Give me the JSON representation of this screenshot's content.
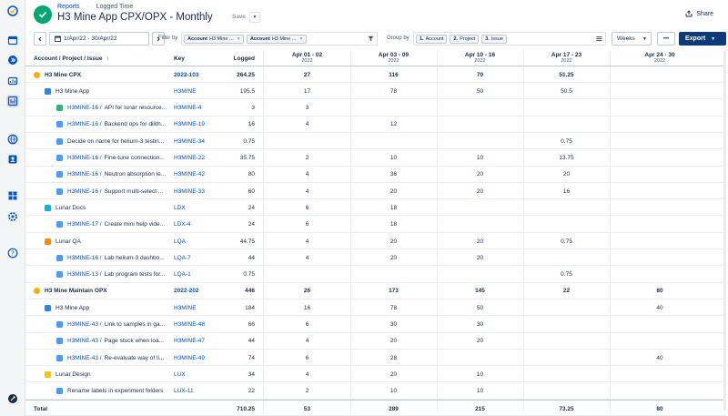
{
  "header": {
    "breadcrumb": [
      "Reports",
      "Logged Time"
    ],
    "breadcrumb_sep": "·",
    "title": "H3 Mine App CPX/OPX - Monthly",
    "save_label": "Save",
    "share_label": "Share"
  },
  "toolbar": {
    "date_range": "1/Apr/22 - 30/Apr/22",
    "filter_label": "Filter by",
    "filters": [
      {
        "bold": "Account",
        "text": "H3 Mine ..."
      },
      {
        "bold": "Account",
        "text": "H3 Mine ..."
      }
    ],
    "group_label": "Group by",
    "groups": [
      {
        "bold": "1.",
        "text": "Account"
      },
      {
        "bold": "2.",
        "text": "Project"
      },
      {
        "bold": "3.",
        "text": "Issue"
      }
    ],
    "period": "Weeks",
    "more": "•••",
    "export_label": "Export"
  },
  "table": {
    "headers": {
      "name": "Account / Project / Issue",
      "sort": "↑",
      "key": "Key",
      "logged": "Logged",
      "periods": [
        {
          "range": "Apr 01 - 02",
          "year": "2022"
        },
        {
          "range": "Apr 03 - 09",
          "year": "2022"
        },
        {
          "range": "Apr 10 - 16",
          "year": "2022"
        },
        {
          "range": "Apr 17 - 23",
          "year": "2022"
        },
        {
          "range": "Apr 24 - 30",
          "year": "2022"
        }
      ]
    },
    "rows": [
      {
        "level": 0,
        "type": "account",
        "prefix": "",
        "name": "H3 Mine CPX",
        "key": "2022-103",
        "logged": "264.25",
        "v": [
          "27",
          "116",
          "70",
          "51.25",
          ""
        ]
      },
      {
        "level": 1,
        "type": "project",
        "prefix": "",
        "name": "H3 Mine App",
        "key": "H3MINE",
        "logged": "195.5",
        "v": [
          "17",
          "78",
          "50",
          "50.5",
          ""
        ]
      },
      {
        "level": 2,
        "type": "story",
        "prefix": "H3MINE-16 /",
        "name": "API for lunar resource...",
        "key": "H3MINE-4",
        "logged": "3",
        "v": [
          "3",
          "",
          "",
          "",
          ""
        ]
      },
      {
        "level": 2,
        "type": "task",
        "prefix": "H3MINE-16 /",
        "name": "Backend ops for dilith...",
        "key": "H3MINE-19",
        "logged": "16",
        "v": [
          "4",
          "12",
          "",
          "",
          ""
        ]
      },
      {
        "level": 2,
        "type": "task",
        "prefix": "",
        "name": "Decide on name for helium-3 testin...",
        "key": "H3MINE-34",
        "logged": "0.75",
        "v": [
          "",
          "",
          "",
          "0.75",
          ""
        ]
      },
      {
        "level": 2,
        "type": "task",
        "prefix": "H3MINE-16 /",
        "name": "Fine-tune connection...",
        "key": "H3MINE-22",
        "logged": "35.75",
        "v": [
          "2",
          "10",
          "10",
          "13.75",
          ""
        ]
      },
      {
        "level": 2,
        "type": "task",
        "prefix": "H3MINE-16 /",
        "name": "Neutron absorption le...",
        "key": "H3MINE-42",
        "logged": "80",
        "v": [
          "4",
          "36",
          "20",
          "20",
          ""
        ]
      },
      {
        "level": 2,
        "type": "task",
        "prefix": "H3MINE-16 /",
        "name": "Support multi-select ...",
        "key": "H3MINE-33",
        "logged": "60",
        "v": [
          "4",
          "20",
          "20",
          "16",
          ""
        ]
      },
      {
        "level": 1,
        "type": "docs",
        "prefix": "",
        "name": "Lunar Docs",
        "key": "LDX",
        "logged": "24",
        "v": [
          "6",
          "18",
          "",
          "",
          ""
        ]
      },
      {
        "level": 2,
        "type": "task",
        "prefix": "H3MINE-17 /",
        "name": "Create mini help vide...",
        "key": "LDX-4",
        "logged": "24",
        "v": [
          "6",
          "18",
          "",
          "",
          ""
        ]
      },
      {
        "level": 1,
        "type": "qa",
        "prefix": "",
        "name": "Lunar QA",
        "key": "LQA",
        "logged": "44.75",
        "v": [
          "4",
          "20",
          "20",
          "0.75",
          ""
        ]
      },
      {
        "level": 2,
        "type": "task",
        "prefix": "H3MINE-16 /",
        "name": "Lab helium-3 dashbo...",
        "key": "LQA-7",
        "logged": "44",
        "v": [
          "4",
          "20",
          "20",
          "",
          ""
        ]
      },
      {
        "level": 2,
        "type": "task",
        "prefix": "H3MINE-13 /",
        "name": "Lab program tests for...",
        "key": "LQA-1",
        "logged": "0.75",
        "v": [
          "",
          "",
          "",
          "0.75",
          ""
        ]
      },
      {
        "level": 0,
        "type": "account",
        "prefix": "",
        "name": "H3 Mine Maintain OPX",
        "key": "2022-202",
        "logged": "446",
        "v": [
          "26",
          "173",
          "145",
          "22",
          "80"
        ]
      },
      {
        "level": 1,
        "type": "project",
        "prefix": "",
        "name": "H3 Mine App",
        "key": "H3MINE",
        "logged": "184",
        "v": [
          "16",
          "78",
          "50",
          "",
          "40"
        ]
      },
      {
        "level": 2,
        "type": "task",
        "prefix": "H3MINE-43 /",
        "name": "Link to samples in ga...",
        "key": "H3MINE-48",
        "logged": "66",
        "v": [
          "6",
          "30",
          "30",
          "",
          ""
        ]
      },
      {
        "level": 2,
        "type": "task",
        "prefix": "H3MINE-43 /",
        "name": "Page stuck when loa...",
        "key": "H3MINE-47",
        "logged": "44",
        "v": [
          "4",
          "20",
          "20",
          "",
          ""
        ]
      },
      {
        "level": 2,
        "type": "task",
        "prefix": "H3MINE-43 /",
        "name": "Re-evaluate way of li...",
        "key": "H3MINE-49",
        "logged": "74",
        "v": [
          "6",
          "28",
          "",
          "",
          "40"
        ]
      },
      {
        "level": 1,
        "type": "design",
        "prefix": "",
        "name": "Lunar Design",
        "key": "LUX",
        "logged": "34",
        "v": [
          "4",
          "20",
          "10",
          "",
          ""
        ]
      },
      {
        "level": 2,
        "type": "task",
        "prefix": "",
        "name": "Rename labels in experiment folders",
        "key": "LUX-11",
        "logged": "22",
        "v": [
          "2",
          "10",
          "10",
          "",
          ""
        ]
      }
    ],
    "total": {
      "label": "Total",
      "logged": "710.25",
      "v": [
        "53",
        "289",
        "215",
        "73.25",
        "80"
      ]
    }
  },
  "colors": {
    "accent": "#0052cc",
    "export_bg": "#0c3a7a",
    "logo_green": "#00a870",
    "account_dot": "#ffab00",
    "project_blue": "#2684ff",
    "story_green": "#36b37e",
    "task_blue": "#4c9aff",
    "docs_teal": "#00b8d9",
    "qa_orange": "#ff8b00",
    "design_amber": "#ffc400"
  },
  "rail_icons": [
    "app-logo-icon",
    "calendar-icon",
    "expand-icon",
    "folder-icon",
    "reports-icon",
    "globe-icon",
    "profile-icon",
    "apps-grid-icon",
    "settings-icon",
    "help-icon",
    "rocket-icon"
  ]
}
